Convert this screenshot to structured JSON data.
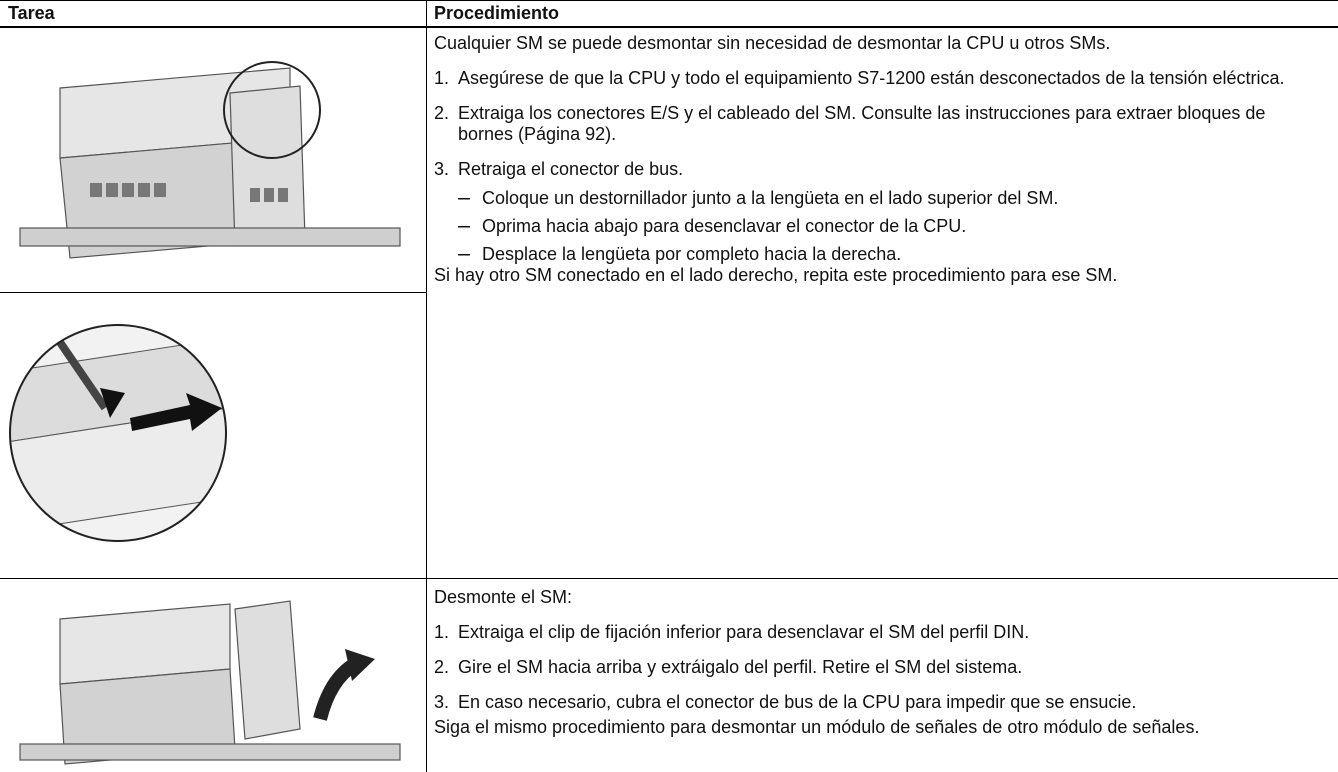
{
  "header": {
    "col1": "Tarea",
    "col2": "Procedimiento"
  },
  "rows": [
    {
      "intro": "Cualquier SM se puede desmontar sin necesidad de desmontar la CPU u otros SMs.",
      "steps": [
        {
          "num": "1.",
          "text": "Asegúrese de que la CPU y todo el equipamiento S7-1200 están desconectados de la tensión eléctrica."
        },
        {
          "num": "2.",
          "text": "Extraiga los conectores E/S y el cableado del SM. Consulte las instrucciones para extraer bloques de bornes (Página 92)."
        },
        {
          "num": "3.",
          "text": "Retraiga el conector de bus."
        }
      ],
      "substeps": [
        "Coloque un destornillador junto a la lengüeta en el lado superior del SM.",
        "Oprima hacia abajo para desenclavar el conector de la CPU.",
        "Desplace la lengüeta por completo hacia la derecha."
      ],
      "note": "Si hay otro SM conectado en el lado derecho, repita este procedimiento para ese SM."
    },
    {
      "intro": "Desmonte el SM:",
      "steps": [
        {
          "num": "1.",
          "text": "Extraiga el clip de fijación inferior para desenclavar el SM del perfil DIN."
        },
        {
          "num": "2.",
          "text": "Gire el SM hacia arriba y extráigalo del perfil. Retire el SM del sistema."
        },
        {
          "num": "3.",
          "text": "En caso necesario, cubra el conector de bus de la CPU para impedir que se ensucie."
        }
      ],
      "note": "Siga el mismo procedimiento para desmontar un módulo de señales de otro módulo de señales."
    }
  ]
}
